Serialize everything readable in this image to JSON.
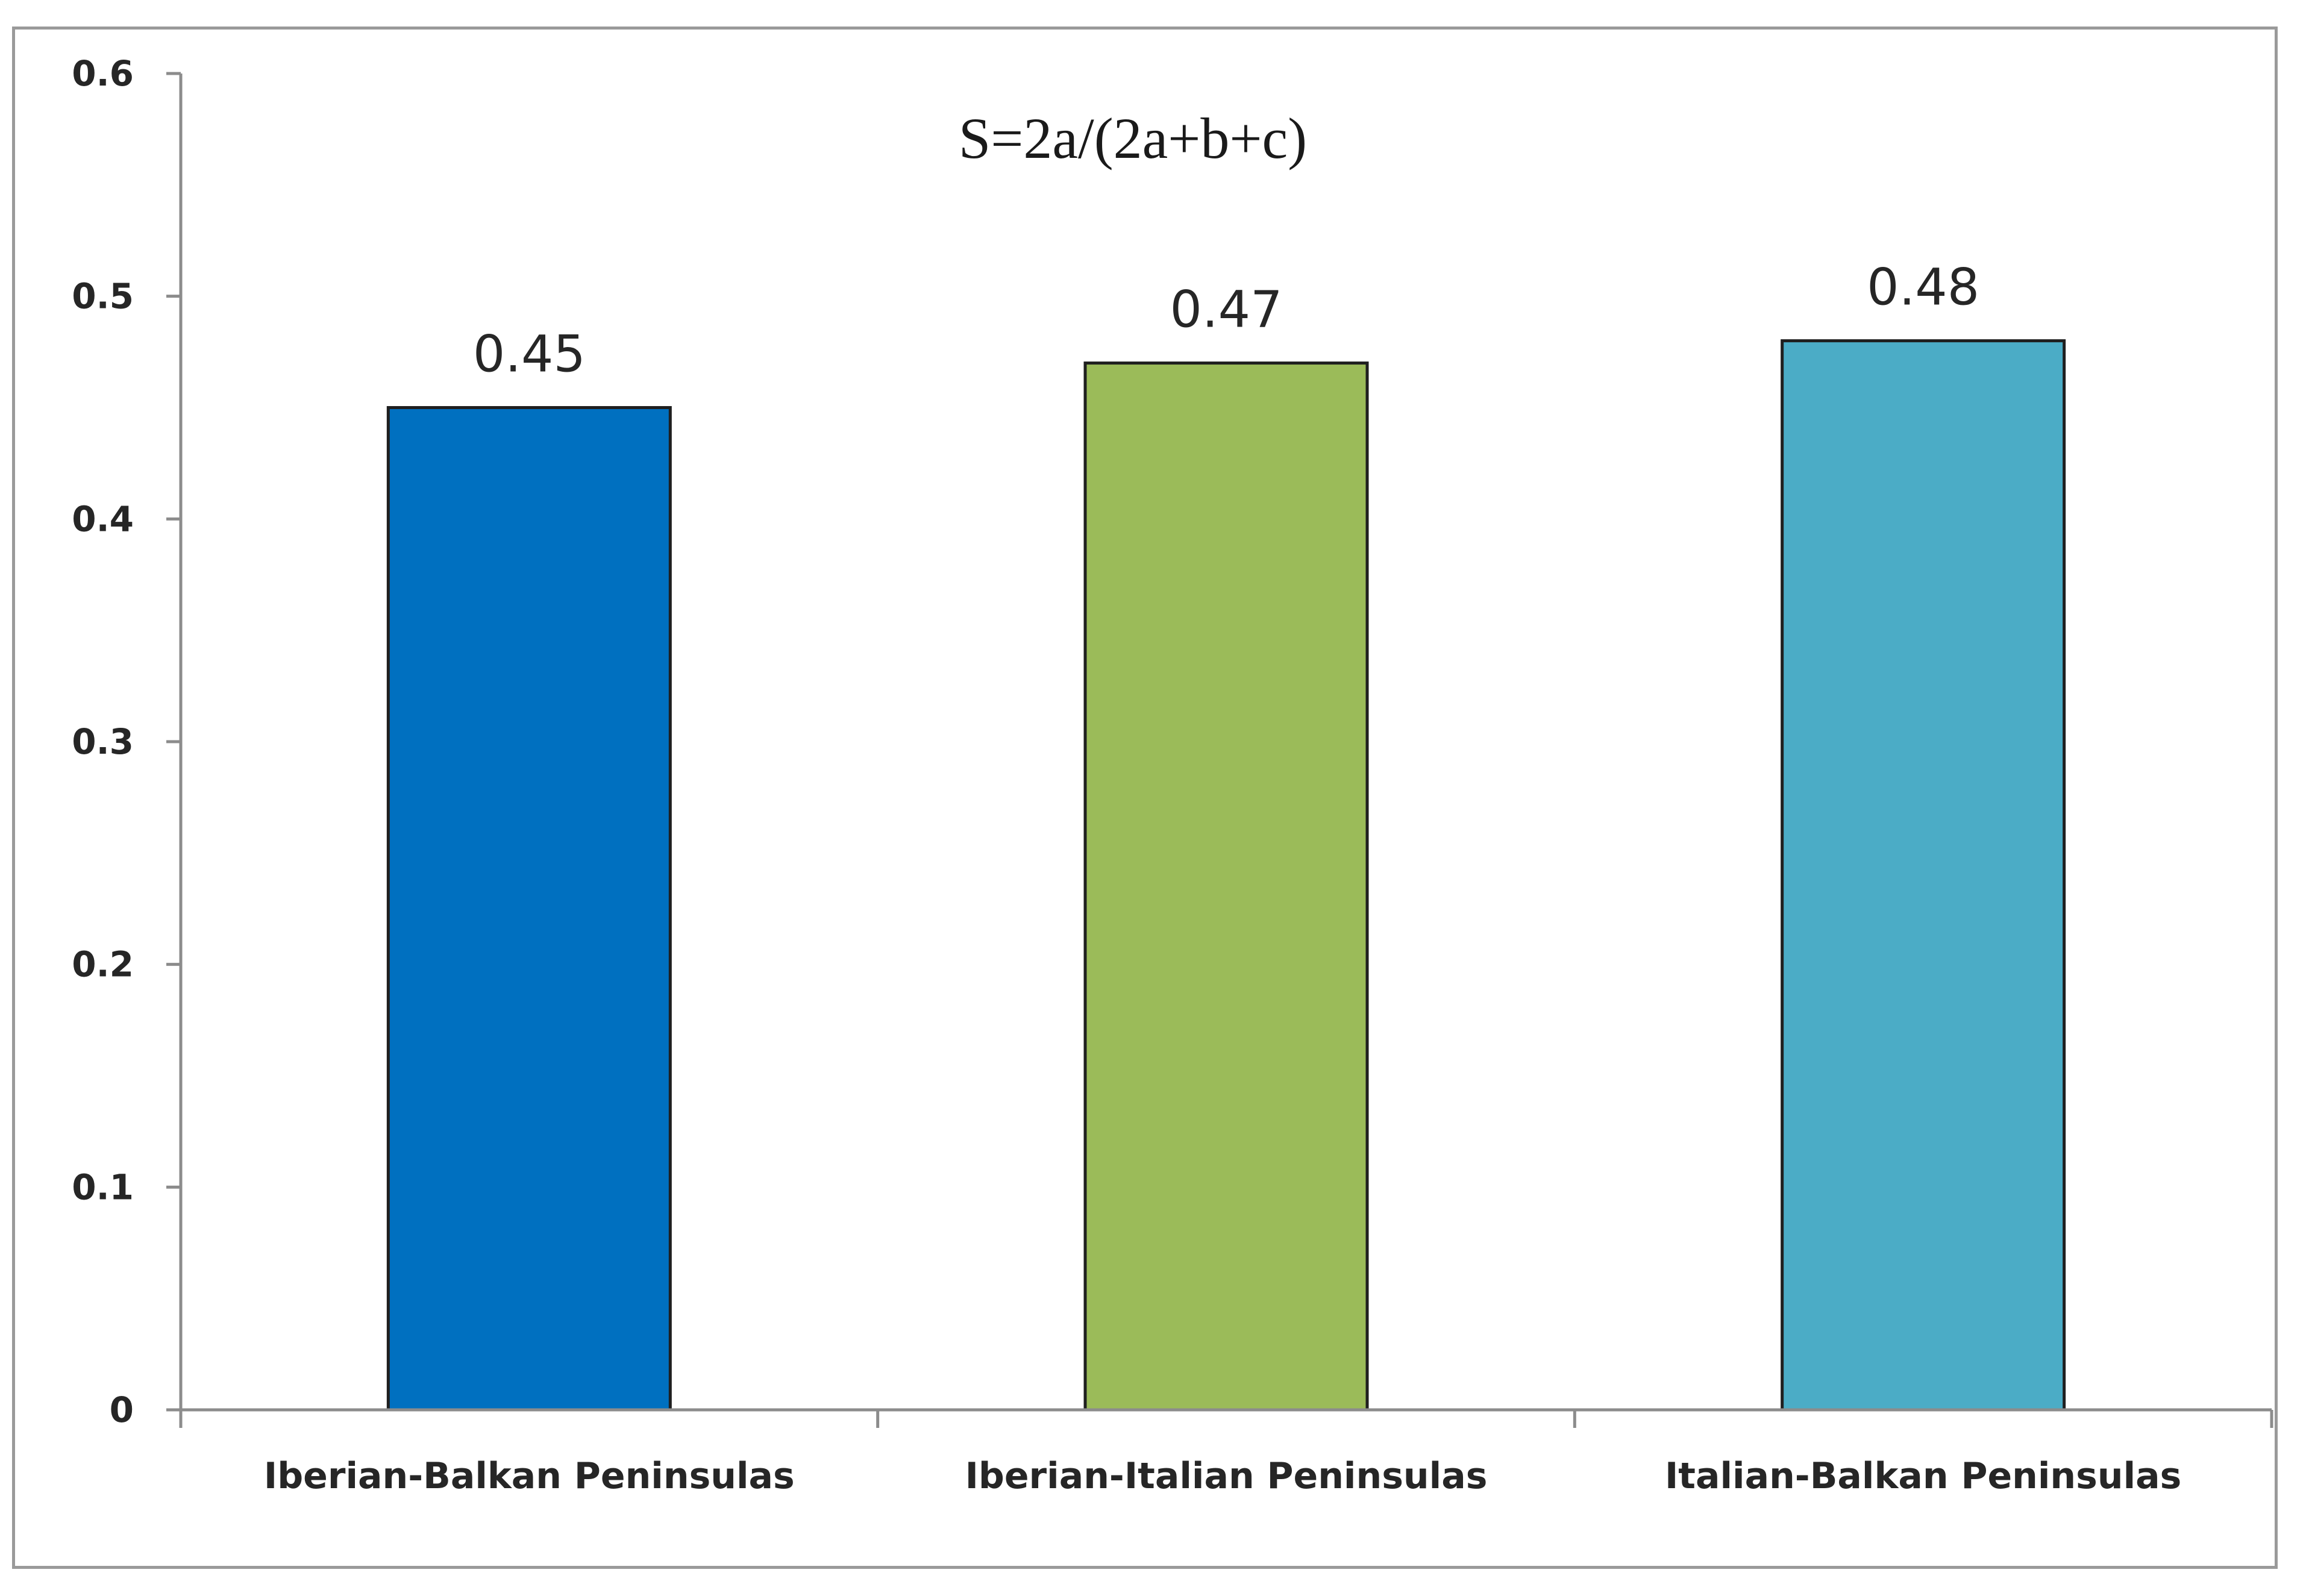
{
  "chart_data": {
    "type": "bar",
    "title": "S=2a/(2a+b+c)",
    "categories": [
      "Iberian-Balkan Peninsulas",
      "Iberian-Italian Peninsulas",
      "Italian-Balkan Peninsulas"
    ],
    "values": [
      0.45,
      0.47,
      0.48
    ],
    "data_labels": [
      "0.45",
      "0.47",
      "0.48"
    ],
    "bar_colors": [
      "#0070c0",
      "#9bbb59",
      "#4bacc6"
    ],
    "ylim": [
      0,
      0.6
    ],
    "yticks": [
      0,
      0.1,
      0.2,
      0.3,
      0.4,
      0.5,
      0.6
    ],
    "ytick_labels": [
      "0",
      "0.1",
      "0.2",
      "0.3",
      "0.4",
      "0.5",
      "0.6"
    ],
    "xlabel": "",
    "ylabel": "",
    "grid": false,
    "legend": "none"
  }
}
